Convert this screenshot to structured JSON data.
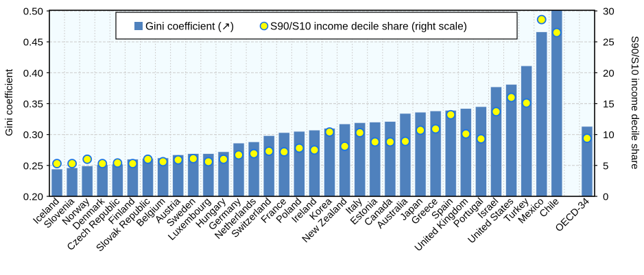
{
  "chart_data": {
    "type": "bar",
    "title": "",
    "xlabel": "",
    "ylabel": "Gini coefficient",
    "y2label": "S90/S10 income decile share",
    "ylim": [
      0.2,
      0.5
    ],
    "y2lim": [
      0,
      30
    ],
    "yticks": [
      "0.20",
      "0.25",
      "0.30",
      "0.35",
      "0.40",
      "0.45",
      "0.50"
    ],
    "y2ticks": [
      "0",
      "5",
      "10",
      "15",
      "20",
      "25",
      "30"
    ],
    "grid": true,
    "legend_position": "top-center",
    "categories": [
      "Iceland",
      "Slovenia",
      "Norway",
      "Denmark",
      "Czech Republic",
      "Finland",
      "Slovak Republic",
      "Belgium",
      "Austria",
      "Sweden",
      "Luxembourg",
      "Hungary",
      "Germany",
      "Netherlands",
      "Switzerland",
      "France",
      "Poland",
      "Ireland",
      "Korea",
      "New Zealand",
      "Italy",
      "Estonia",
      "Canada",
      "Australia",
      "Japan",
      "Greece",
      "Spain",
      "United Kingdom",
      "Portugal",
      "Israel",
      "United States",
      "Turkey",
      "Mexico",
      "Chile",
      "",
      "OECD-34"
    ],
    "series": [
      {
        "name": "Gini coefficient (↗)",
        "type": "bar",
        "axis": "left",
        "color": "#4F81BD",
        "values": [
          0.244,
          0.246,
          0.249,
          0.251,
          0.252,
          0.26,
          0.261,
          0.262,
          0.267,
          0.269,
          0.269,
          0.272,
          0.286,
          0.288,
          0.298,
          0.303,
          0.305,
          0.307,
          0.31,
          0.317,
          0.319,
          0.32,
          0.321,
          0.334,
          0.336,
          0.338,
          0.339,
          0.342,
          0.345,
          0.377,
          0.381,
          0.411,
          0.466,
          0.501,
          null,
          0.313
        ]
      },
      {
        "name": "S90/S10 income decile share (right scale)",
        "type": "scatter",
        "axis": "right",
        "color": "#FFFF00",
        "edge_color": "#1C74E0",
        "values": [
          5.3,
          5.3,
          6.0,
          5.3,
          5.4,
          5.3,
          6.0,
          5.6,
          5.9,
          6.1,
          5.6,
          6.0,
          6.7,
          6.9,
          7.3,
          7.2,
          7.8,
          7.5,
          10.4,
          8.1,
          10.3,
          8.8,
          8.8,
          8.9,
          10.7,
          10.9,
          13.2,
          10.1,
          9.3,
          13.7,
          16.0,
          15.1,
          28.6,
          26.5,
          null,
          9.4
        ]
      }
    ]
  },
  "colors": {
    "plot_background": "#F3FCFF",
    "bar": "#4F81BD",
    "bar_edge": "#D7E3F2",
    "dot_fill": "#FFFF00",
    "dot_edge": "#1C74E0",
    "grid": "#CFCFCF"
  }
}
